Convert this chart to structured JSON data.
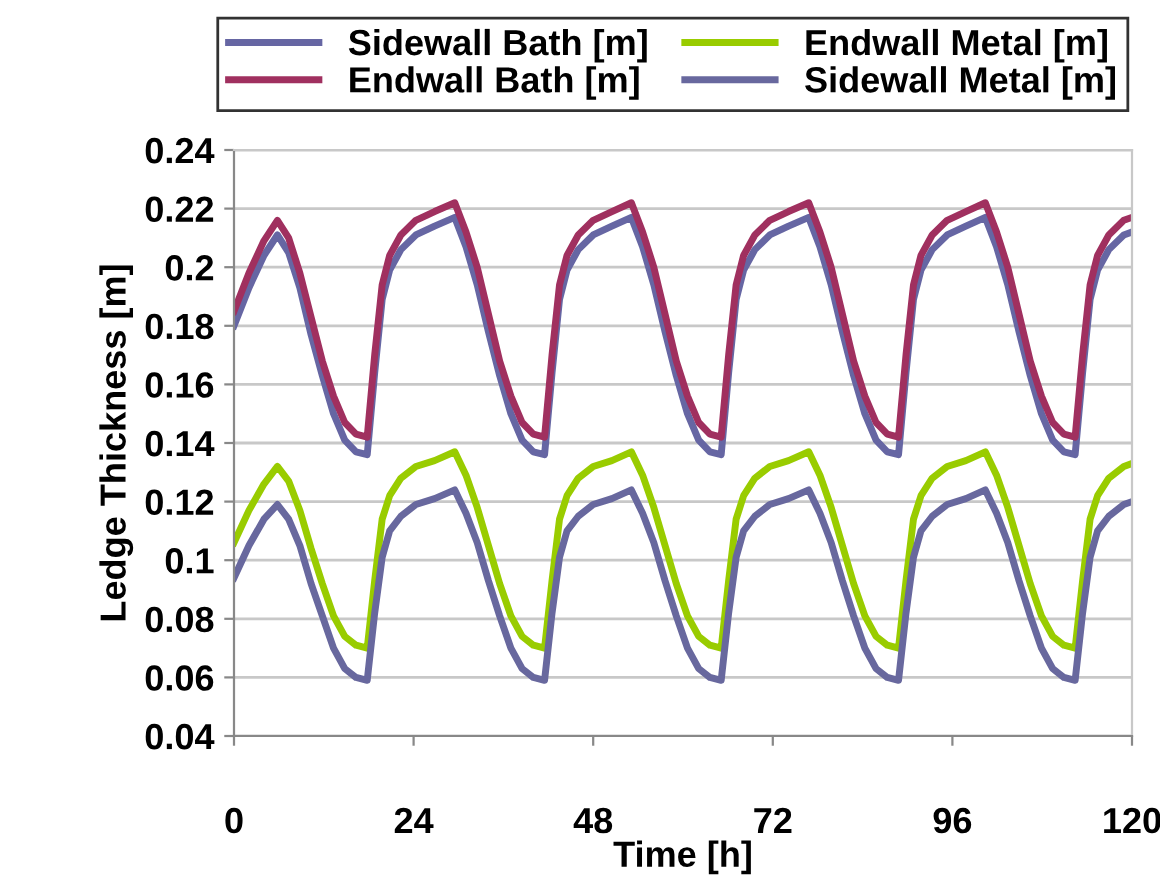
{
  "chart_data": {
    "type": "line",
    "xlabel": "Time [h]",
    "ylabel": "Ledge Thickness [m]",
    "x": [
      0,
      2,
      4,
      5.8,
      7.3,
      8.8,
      10.3,
      11.8,
      13.3,
      14.8,
      16.3,
      17.8,
      18.8,
      19.8,
      20.8,
      22.3,
      24.3,
      26.8,
      29.5,
      31,
      32.5,
      34,
      35.5,
      37,
      38.5,
      40,
      41.5,
      42.5,
      43.5,
      44.5,
      46,
      48,
      50.5,
      53.1,
      54.6,
      56.1,
      57.6,
      59.1,
      60.6,
      62.1,
      63.6,
      65.1,
      66.1,
      67.1,
      68.1,
      69.6,
      71.6,
      74.1,
      76.8,
      78.3,
      79.8,
      81.3,
      82.8,
      84.3,
      85.8,
      87.3,
      88.8,
      89.8,
      90.8,
      91.8,
      93.3,
      95.3,
      97.8,
      100.4,
      101.9,
      103.4,
      104.9,
      106.4,
      107.9,
      109.4,
      110.9,
      112.4,
      113.4,
      114.4,
      115.4,
      116.9,
      118.9,
      120
    ],
    "series": [
      {
        "name": "Sidewall Bath [m]",
        "color": "#6666a3",
        "values": [
          0.18,
          0.193,
          0.204,
          0.211,
          0.205,
          0.193,
          0.177,
          0.163,
          0.15,
          0.141,
          0.137,
          0.136,
          0.164,
          0.189,
          0.199,
          0.206,
          0.211,
          0.214,
          0.217,
          0.207,
          0.194,
          0.178,
          0.163,
          0.15,
          0.141,
          0.137,
          0.136,
          0.164,
          0.189,
          0.199,
          0.206,
          0.211,
          0.214,
          0.217,
          0.207,
          0.194,
          0.178,
          0.163,
          0.15,
          0.141,
          0.137,
          0.136,
          0.164,
          0.189,
          0.199,
          0.206,
          0.211,
          0.214,
          0.217,
          0.207,
          0.194,
          0.178,
          0.163,
          0.15,
          0.141,
          0.137,
          0.136,
          0.164,
          0.189,
          0.199,
          0.206,
          0.211,
          0.214,
          0.217,
          0.207,
          0.194,
          0.178,
          0.163,
          0.15,
          0.141,
          0.137,
          0.136,
          0.164,
          0.189,
          0.199,
          0.206,
          0.211,
          0.212
        ]
      },
      {
        "name": "Endwall Bath [m]",
        "color": "#a0305f",
        "values": [
          0.185,
          0.198,
          0.209,
          0.216,
          0.21,
          0.198,
          0.183,
          0.168,
          0.156,
          0.147,
          0.143,
          0.142,
          0.17,
          0.194,
          0.204,
          0.211,
          0.216,
          0.219,
          0.222,
          0.212,
          0.2,
          0.184,
          0.168,
          0.156,
          0.147,
          0.143,
          0.142,
          0.17,
          0.194,
          0.204,
          0.211,
          0.216,
          0.219,
          0.222,
          0.212,
          0.2,
          0.184,
          0.168,
          0.156,
          0.147,
          0.143,
          0.142,
          0.17,
          0.194,
          0.204,
          0.211,
          0.216,
          0.219,
          0.222,
          0.212,
          0.2,
          0.184,
          0.168,
          0.156,
          0.147,
          0.143,
          0.142,
          0.17,
          0.194,
          0.204,
          0.211,
          0.216,
          0.219,
          0.222,
          0.212,
          0.2,
          0.184,
          0.168,
          0.156,
          0.147,
          0.143,
          0.142,
          0.17,
          0.194,
          0.204,
          0.211,
          0.216,
          0.217
        ]
      },
      {
        "name": "Endwall Metal [m]",
        "color": "#99cc00",
        "values": [
          0.106,
          0.117,
          0.126,
          0.132,
          0.127,
          0.117,
          0.104,
          0.092,
          0.081,
          0.074,
          0.071,
          0.07,
          0.093,
          0.114,
          0.122,
          0.128,
          0.132,
          0.134,
          0.137,
          0.129,
          0.118,
          0.105,
          0.092,
          0.081,
          0.074,
          0.071,
          0.07,
          0.093,
          0.114,
          0.122,
          0.128,
          0.132,
          0.134,
          0.137,
          0.129,
          0.118,
          0.105,
          0.092,
          0.081,
          0.074,
          0.071,
          0.07,
          0.093,
          0.114,
          0.122,
          0.128,
          0.132,
          0.134,
          0.137,
          0.129,
          0.118,
          0.105,
          0.092,
          0.081,
          0.074,
          0.071,
          0.07,
          0.093,
          0.114,
          0.122,
          0.128,
          0.132,
          0.134,
          0.137,
          0.129,
          0.118,
          0.105,
          0.092,
          0.081,
          0.074,
          0.071,
          0.07,
          0.093,
          0.114,
          0.122,
          0.128,
          0.132,
          0.133
        ]
      },
      {
        "name": "Sidewall Metal [m]",
        "color": "#68689e",
        "values": [
          0.094,
          0.105,
          0.114,
          0.119,
          0.114,
          0.105,
          0.092,
          0.081,
          0.07,
          0.063,
          0.06,
          0.059,
          0.082,
          0.101,
          0.11,
          0.115,
          0.119,
          0.121,
          0.124,
          0.116,
          0.106,
          0.093,
          0.081,
          0.07,
          0.063,
          0.06,
          0.059,
          0.082,
          0.101,
          0.11,
          0.115,
          0.119,
          0.121,
          0.124,
          0.116,
          0.106,
          0.093,
          0.081,
          0.07,
          0.063,
          0.06,
          0.059,
          0.082,
          0.101,
          0.11,
          0.115,
          0.119,
          0.121,
          0.124,
          0.116,
          0.106,
          0.093,
          0.081,
          0.07,
          0.063,
          0.06,
          0.059,
          0.082,
          0.101,
          0.11,
          0.115,
          0.119,
          0.121,
          0.124,
          0.116,
          0.106,
          0.093,
          0.081,
          0.07,
          0.063,
          0.06,
          0.059,
          0.082,
          0.101,
          0.11,
          0.115,
          0.119,
          0.12
        ]
      }
    ],
    "xlim": [
      0,
      120
    ],
    "xticks": [
      0,
      24,
      48,
      72,
      96,
      120
    ],
    "ylim": [
      0.04,
      0.24
    ],
    "yticks": [
      0.04,
      0.06,
      0.08,
      0.1,
      0.12,
      0.14,
      0.16,
      0.18,
      0.2,
      0.22,
      0.24
    ],
    "grid": "y",
    "legend": "top",
    "marker": "none",
    "line_style": "solid"
  }
}
